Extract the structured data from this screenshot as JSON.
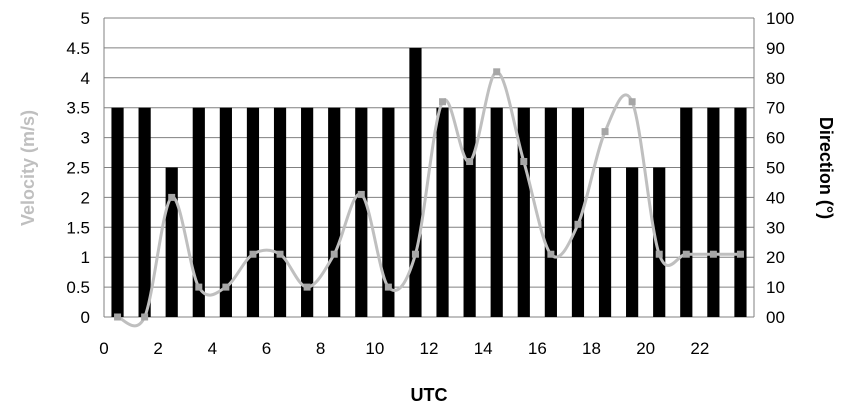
{
  "chart_data": {
    "type": "bar",
    "title": "",
    "xlabel": "UTC",
    "ylabel": "Velocity (m/s)",
    "y2label": "Direction (°)",
    "x": [
      0,
      1,
      2,
      3,
      4,
      5,
      6,
      7,
      8,
      9,
      10,
      11,
      12,
      13,
      14,
      15,
      16,
      17,
      18,
      19,
      20,
      21,
      22,
      23
    ],
    "xticks": [
      "0",
      "2",
      "4",
      "6",
      "8",
      "10",
      "12",
      "14",
      "16",
      "18",
      "20",
      "22"
    ],
    "ylim": [
      0,
      5
    ],
    "yticks": [
      "0",
      "0.5",
      "1",
      "1.5",
      "2",
      "2.5",
      "3",
      "3.5",
      "4",
      "4.5",
      "5"
    ],
    "y2lim": [
      0,
      100
    ],
    "y2ticks": [
      "00",
      "10",
      "20",
      "30",
      "40",
      "50",
      "60",
      "70",
      "80",
      "90",
      "100"
    ],
    "grid": "horizontal",
    "series": [
      {
        "type": "bar",
        "axis": "right",
        "color": "#000000",
        "values": [
          70,
          70,
          50,
          70,
          70,
          70,
          70,
          70,
          70,
          70,
          70,
          90,
          70,
          70,
          70,
          70,
          70,
          70,
          50,
          50,
          50,
          70,
          70,
          70
        ]
      },
      {
        "type": "line",
        "axis": "left",
        "smooth": true,
        "color": "#bfbfbf",
        "marker": "square",
        "values": [
          0,
          0,
          2,
          0.5,
          0.5,
          1.05,
          1.05,
          0.5,
          1.05,
          2.05,
          0.5,
          1.05,
          3.6,
          2.6,
          4.1,
          2.6,
          1.05,
          1.55,
          3.1,
          3.6,
          1.05,
          1.05,
          1.05,
          1.05
        ]
      }
    ]
  },
  "colors": {
    "left_axis_title": "#bfbfbf",
    "right_axis_title": "#000000",
    "gridline": "#808080"
  }
}
